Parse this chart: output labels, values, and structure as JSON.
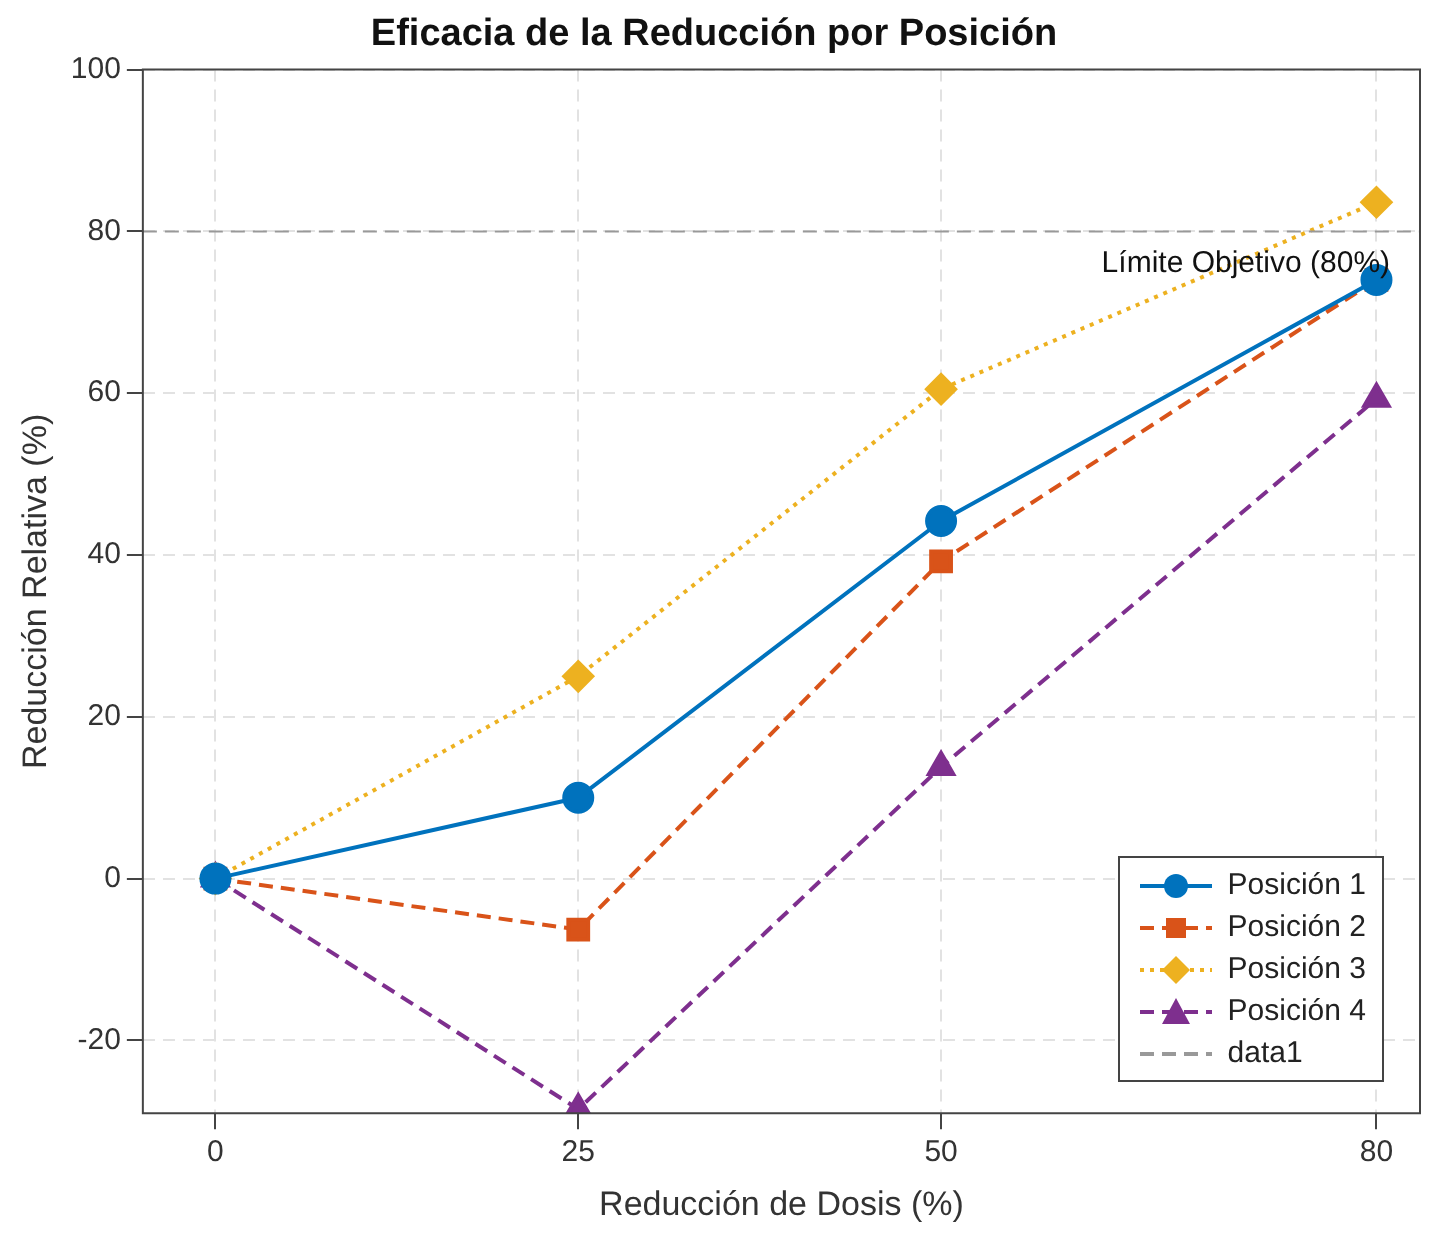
{
  "chart_data": {
    "type": "line",
    "title": "Eficacia de la Reducción por Posición",
    "xlabel": "Reducción de Dosis (%)",
    "ylabel": "Reducción Relativa (%)",
    "x": [
      0,
      25,
      50,
      80
    ],
    "series": [
      {
        "name": "Posición 1",
        "color": "#0072bd",
        "values": [
          0,
          10,
          44.2,
          74
        ],
        "marker": "circle",
        "line_style": "solid"
      },
      {
        "name": "Posición 2",
        "color": "#d95319",
        "values": [
          0,
          -6.3,
          39.2,
          74
        ],
        "marker": "square",
        "line_style": "dashed"
      },
      {
        "name": "Posición 3",
        "color": "#edb120",
        "values": [
          0,
          25,
          60.5,
          83.6
        ],
        "marker": "diamond",
        "line_style": "dotted"
      },
      {
        "name": "Posición 4",
        "color": "#7e2f8e",
        "values": [
          0,
          -28.5,
          13.8,
          59.3
        ],
        "marker": "triangle",
        "line_style": "dashed"
      }
    ],
    "ref_lines": [
      {
        "axis": "y",
        "value": 80,
        "label": "data1",
        "color": "#999999",
        "line_style": "dashed"
      }
    ],
    "annotations": [
      {
        "text": "Límite Objetivo (80%)",
        "x": 71,
        "y": 76
      }
    ],
    "xlim": [
      -5,
      83
    ],
    "xticks": [
      0,
      25,
      50,
      80
    ],
    "ylim": [
      -29,
      100
    ],
    "yticks": [
      -20,
      0,
      20,
      40,
      60,
      80,
      100
    ],
    "grid": true,
    "legend": "bottom right"
  }
}
